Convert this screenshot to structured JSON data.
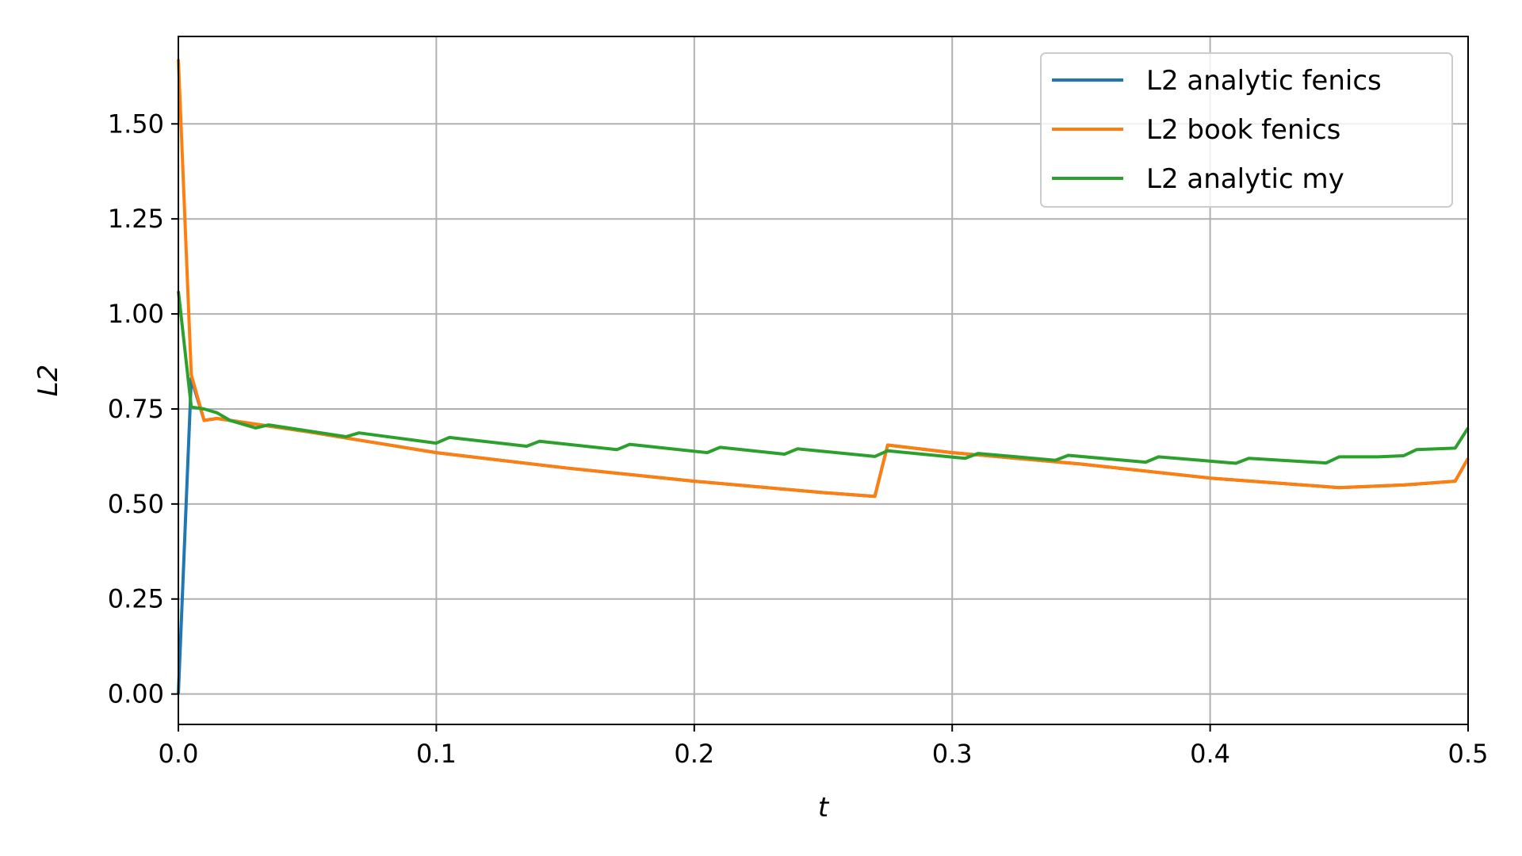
{
  "chart_data": {
    "type": "line",
    "xlabel": "t",
    "ylabel": "L2",
    "xlim": [
      0.0,
      0.5
    ],
    "ylim": [
      -0.08,
      1.73
    ],
    "xticks": [
      0.0,
      0.1,
      0.2,
      0.3,
      0.4,
      0.5
    ],
    "xtick_labels": [
      "0.0",
      "0.1",
      "0.2",
      "0.3",
      "0.4",
      "0.5"
    ],
    "yticks": [
      0.0,
      0.25,
      0.5,
      0.75,
      1.0,
      1.25,
      1.5
    ],
    "ytick_labels": [
      "0.00",
      "0.25",
      "0.50",
      "0.75",
      "1.00",
      "1.25",
      "1.50"
    ],
    "grid": true,
    "legend_position": "top-right",
    "series": [
      {
        "name": "L2 analytic fenics",
        "color": "#1f77b4",
        "x": [
          0.0,
          0.005,
          0.01,
          0.015,
          0.02,
          0.03,
          0.05,
          0.1,
          0.15,
          0.2,
          0.25,
          0.27,
          0.275,
          0.3,
          0.35,
          0.4,
          0.45,
          0.475,
          0.495,
          0.5
        ],
        "y": [
          0.0,
          0.83,
          0.72,
          0.725,
          0.72,
          0.71,
          0.69,
          0.635,
          0.595,
          0.56,
          0.53,
          0.52,
          0.655,
          0.635,
          0.605,
          0.568,
          0.543,
          0.55,
          0.56,
          0.62
        ]
      },
      {
        "name": "L2 book fenics",
        "color": "#ff7f0e",
        "x": [
          0.0,
          0.005,
          0.01,
          0.015,
          0.02,
          0.03,
          0.05,
          0.1,
          0.15,
          0.2,
          0.25,
          0.27,
          0.275,
          0.3,
          0.35,
          0.4,
          0.45,
          0.475,
          0.495,
          0.5
        ],
        "y": [
          1.67,
          0.84,
          0.72,
          0.725,
          0.72,
          0.71,
          0.69,
          0.635,
          0.595,
          0.56,
          0.53,
          0.52,
          0.655,
          0.635,
          0.605,
          0.568,
          0.543,
          0.55,
          0.56,
          0.62
        ]
      },
      {
        "name": "L2 analytic my",
        "color": "#2ca02c",
        "x": [
          0.0,
          0.005,
          0.01,
          0.015,
          0.02,
          0.03,
          0.035,
          0.065,
          0.07,
          0.1,
          0.105,
          0.135,
          0.14,
          0.17,
          0.175,
          0.205,
          0.21,
          0.235,
          0.24,
          0.27,
          0.275,
          0.305,
          0.31,
          0.34,
          0.345,
          0.375,
          0.38,
          0.41,
          0.415,
          0.445,
          0.45,
          0.465,
          0.475,
          0.48,
          0.495,
          0.5
        ],
        "y": [
          1.06,
          0.755,
          0.75,
          0.74,
          0.72,
          0.7,
          0.708,
          0.677,
          0.687,
          0.66,
          0.675,
          0.652,
          0.665,
          0.643,
          0.657,
          0.635,
          0.649,
          0.631,
          0.645,
          0.625,
          0.64,
          0.62,
          0.633,
          0.615,
          0.628,
          0.61,
          0.624,
          0.607,
          0.62,
          0.608,
          0.624,
          0.624,
          0.627,
          0.643,
          0.647,
          0.7
        ]
      }
    ]
  }
}
